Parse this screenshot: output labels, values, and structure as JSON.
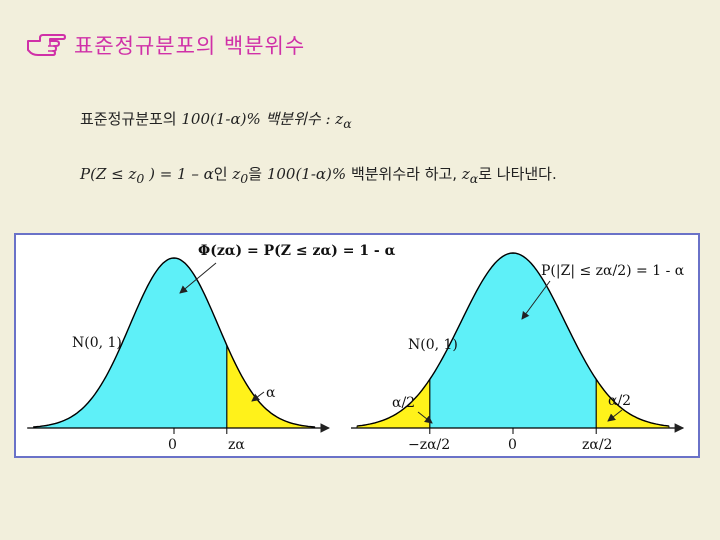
{
  "slide": {
    "title": "표준정규분포의 백분위수",
    "line1": {
      "ko": "표준정규분포의",
      "expr": "100(1-α)% 백분위수 : z",
      "sub": "α"
    },
    "line2": {
      "p_expr": "P(Z ≤ z",
      "p_sub": "0",
      "p_rest": " ) = 1 – α",
      "ko1": "인",
      "z0": "z",
      "z0_sub": "0",
      "ko2": "을",
      "pct": "100(1-α)%",
      "ko3": "백분위수라 하고,",
      "za": "z",
      "za_sub": "α",
      "ko4": "로 나타낸다."
    }
  },
  "figure": {
    "left": {
      "formula": "Φ(zα) = P(Z ≤ zα) = 1 - α",
      "dist_label": "N(0, 1)",
      "tail_label": "α",
      "zero_label": "0",
      "z_label": "zα"
    },
    "right": {
      "formula": "P(|Z| ≤ zα/2) = 1 - α",
      "dist_label": "N(0, 1)",
      "left_tail_label": "α/2",
      "right_tail_label": "α/2",
      "neg_z_label": "−zα/2",
      "zero_label": "0",
      "pos_z_label": "zα/2"
    },
    "colors": {
      "body": "#5ef0f8",
      "tail": "#fff21a",
      "frame": "#6a72c8"
    },
    "normal": {
      "mu": 0,
      "sigma": 1,
      "z_alpha": 1.2,
      "z_alpha_half": 1.6
    }
  }
}
